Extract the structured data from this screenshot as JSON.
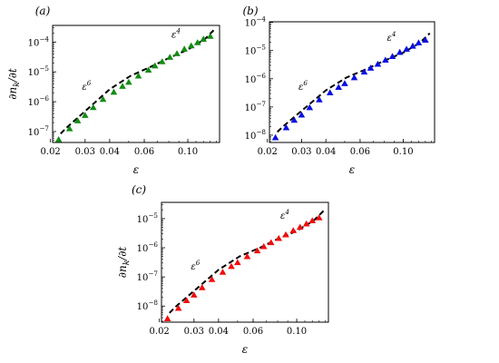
{
  "chart_data": [
    {
      "panel": "(a)",
      "type": "scatter",
      "xlabel": "ε",
      "ylabel": "∂n_k/∂t",
      "xscale": "log",
      "yscale": "log",
      "xlim": [
        0.0205,
        0.145
      ],
      "ylim": [
        4.3e-08,
        0.00036
      ],
      "xticks": [
        0.02,
        0.03,
        0.04,
        0.06,
        0.1
      ],
      "xtick_labels": [
        "0.02",
        "0.03",
        "0.04",
        "0.06",
        "0.10"
      ],
      "yticks": [
        1e-07,
        1e-06,
        1e-05,
        0.0001
      ],
      "ytick_labels": [
        "10⁻⁷",
        "10⁻⁶",
        "10⁻⁵",
        "10⁻⁴"
      ],
      "marker_color": "#138c13",
      "marker": "triangle",
      "points": {
        "x": [
          0.022,
          0.025,
          0.0275,
          0.03,
          0.033,
          0.037,
          0.042,
          0.0465,
          0.05,
          0.056,
          0.063,
          0.068,
          0.074,
          0.081,
          0.088,
          0.096,
          0.104,
          0.112,
          0.12,
          0.13
        ],
        "y": [
          5.4e-08,
          1.25e-07,
          2.3e-07,
          3.5e-07,
          6.4e-07,
          1.2e-06,
          2.1e-06,
          3.3e-06,
          4.5e-06,
          7.3e-06,
          1.15e-05,
          1.6e-05,
          2.2e-05,
          3.1e-05,
          4.1e-05,
          5.8e-05,
          7.5e-05,
          9.6e-05,
          0.000125,
          0.000156
        ]
      },
      "reference_line": {
        "style": "dashed",
        "color": "#000000",
        "x": [
          0.0225,
          0.024,
          0.04,
          0.051,
          0.065,
          0.08,
          0.1,
          0.122,
          0.137
        ],
        "y": [
          8.5e-08,
          1.3e-07,
          2.6e-06,
          7.3e-06,
          1.5e-05,
          2.9e-05,
          5.6e-05,
          0.000125,
          0.00027
        ]
      },
      "annotations": [
        {
          "text": "ε⁶",
          "x": 0.0305,
          "y": 2.5e-06
        },
        {
          "text": "ε⁴",
          "x": 0.087,
          "y": 0.00014
        }
      ]
    },
    {
      "panel": "(b)",
      "type": "scatter",
      "xlabel": "ε",
      "ylabel": "",
      "xscale": "log",
      "yscale": "log",
      "xlim": [
        0.0205,
        0.145
      ],
      "ylim": [
        5.5e-09,
        0.000105
      ],
      "xticks": [
        0.02,
        0.03,
        0.04,
        0.06,
        0.1
      ],
      "xtick_labels": [
        "0.02",
        "0.03",
        "0.04",
        "0.06",
        "0.10"
      ],
      "yticks": [
        1e-08,
        1e-07,
        1e-06,
        1e-05,
        0.0001
      ],
      "ytick_labels": [
        "10⁻⁸",
        "10⁻⁷",
        "10⁻⁶",
        "10⁻⁵",
        "10⁻⁴"
      ],
      "marker_color": "#0a10e0",
      "marker": "triangle",
      "points": {
        "x": [
          0.022,
          0.025,
          0.0275,
          0.03,
          0.033,
          0.037,
          0.042,
          0.0465,
          0.05,
          0.056,
          0.063,
          0.068,
          0.074,
          0.081,
          0.088,
          0.096,
          0.104,
          0.112,
          0.12,
          0.13
        ],
        "y": [
          8.2e-09,
          1.85e-08,
          3.4e-08,
          5.2e-08,
          9.5e-08,
          1.8e-07,
          3.2e-07,
          5e-07,
          6.8e-07,
          1.1e-06,
          1.75e-06,
          2.4e-06,
          3.3e-06,
          4.6e-06,
          6.2e-06,
          8.7e-06,
          1.12e-05,
          1.45e-05,
          1.88e-05,
          2.35e-05
        ]
      },
      "reference_line": {
        "style": "dashed",
        "color": "#000000",
        "x": [
          0.0225,
          0.024,
          0.04,
          0.051,
          0.065,
          0.08,
          0.1,
          0.122,
          0.137
        ],
        "y": [
          1.3e-08,
          2e-08,
          3.9e-07,
          1.1e-06,
          2.25e-06,
          4.4e-06,
          8.4e-06,
          1.9e-05,
          4.1e-05
        ]
      },
      "annotations": [
        {
          "text": "ε⁶",
          "x": 0.0305,
          "y": 4e-07
        },
        {
          "text": "ε⁴",
          "x": 0.087,
          "y": 2.2e-05
        }
      ]
    },
    {
      "panel": "(c)",
      "type": "scatter",
      "xlabel": "ε",
      "ylabel": "∂n_k/∂t",
      "xscale": "log",
      "yscale": "log",
      "xlim": [
        0.0205,
        0.145
      ],
      "ylim": [
        2.8e-09,
        3.6e-05
      ],
      "xticks": [
        0.02,
        0.03,
        0.04,
        0.06,
        0.1
      ],
      "xtick_labels": [
        "0.02",
        "0.03",
        "0.04",
        "0.06",
        "0.10"
      ],
      "yticks": [
        1e-08,
        1e-07,
        1e-06,
        1e-05
      ],
      "ytick_labels": [
        "10⁻⁸",
        "10⁻⁷",
        "10⁻⁶",
        "10⁻⁵"
      ],
      "marker_color": "#f00d0d",
      "marker": "triangle",
      "points": {
        "x": [
          0.022,
          0.025,
          0.0275,
          0.03,
          0.033,
          0.037,
          0.042,
          0.0465,
          0.05,
          0.056,
          0.063,
          0.068,
          0.074,
          0.081,
          0.088,
          0.096,
          0.104,
          0.112,
          0.12,
          0.13
        ],
        "y": [
          3.7e-09,
          8.4e-09,
          1.55e-08,
          2.4e-08,
          4.3e-08,
          8.2e-08,
          1.45e-07,
          2.3e-07,
          3.1e-07,
          5e-07,
          7.9e-07,
          1.1e-06,
          1.5e-06,
          2.1e-06,
          2.8e-06,
          3.9e-06,
          5.1e-06,
          6.6e-06,
          8.5e-06,
          1.07e-05
        ]
      },
      "reference_line": {
        "style": "dashed",
        "color": "#000000",
        "x": [
          0.0225,
          0.024,
          0.04,
          0.051,
          0.065,
          0.08,
          0.1,
          0.122,
          0.137
        ],
        "y": [
          5.8e-09,
          9e-09,
          1.75e-07,
          5e-07,
          1e-06,
          2e-06,
          3.8e-06,
          8.6e-06,
          1.85e-05
        ]
      },
      "annotations": [
        {
          "text": "ε⁶",
          "x": 0.0305,
          "y": 1.8e-07
        },
        {
          "text": "ε⁴",
          "x": 0.087,
          "y": 9.9e-06
        }
      ]
    }
  ]
}
